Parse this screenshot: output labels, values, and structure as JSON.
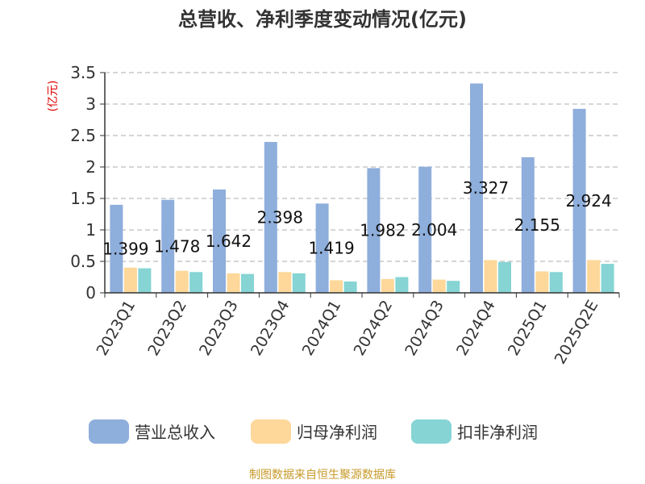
{
  "chart_data": {
    "type": "bar",
    "title": "总营收、净利季度变动情况(亿元)",
    "ylabel": "(亿元)",
    "xlabel": "",
    "ylim": [
      0,
      3.5
    ],
    "yticks": [
      "0",
      "0.5",
      "1",
      "1.5",
      "2",
      "2.5",
      "3",
      "3.5"
    ],
    "grid": "horizontal-dashed",
    "legend_position": "bottom",
    "categories": [
      "2023Q1",
      "2023Q2",
      "2023Q3",
      "2023Q4",
      "2024Q1",
      "2024Q2",
      "2024Q3",
      "2024Q4",
      "2025Q1",
      "2025Q2E"
    ],
    "series": [
      {
        "name": "营业总收入",
        "color": "#8eaedc",
        "values": [
          1.399,
          1.478,
          1.642,
          2.398,
          1.419,
          1.982,
          2.004,
          3.327,
          2.155,
          2.924
        ]
      },
      {
        "name": "归母净利润",
        "color": "#fdd89a",
        "values": [
          0.4,
          0.35,
          0.31,
          0.33,
          0.2,
          0.22,
          0.21,
          0.52,
          0.34,
          0.52
        ]
      },
      {
        "name": "扣非净利润",
        "color": "#86d4d4",
        "values": [
          0.39,
          0.33,
          0.3,
          0.31,
          0.18,
          0.25,
          0.19,
          0.49,
          0.33,
          0.46
        ]
      }
    ],
    "data_labels": [
      "1.399",
      "1.478",
      "1.642",
      "2.398",
      "1.419",
      "1.982",
      "2.004",
      "3.327",
      "2.155",
      "2.924"
    ]
  },
  "footer": {
    "source": "制图数据来自恒生聚源数据库"
  }
}
